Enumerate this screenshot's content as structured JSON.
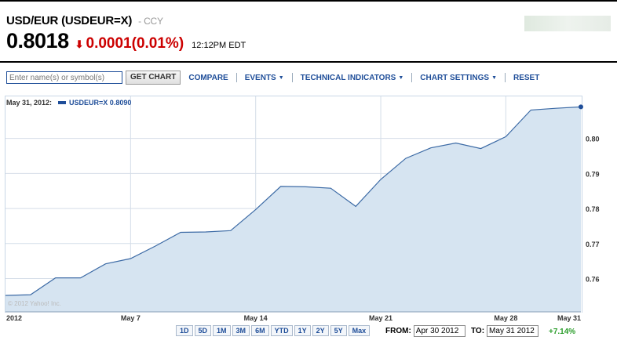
{
  "header": {
    "title": "USD/EUR (USDEUR=X)",
    "subtitle": "- CCY",
    "price": "0.8018",
    "change": "0.0001(0.01%)",
    "time": "12:12PM EDT",
    "change_color": "#cc0000",
    "down_arrow_icon": "down-arrow-icon"
  },
  "toolbar": {
    "search_placeholder": "Enter name(s) or symbol(s)",
    "get_chart": "GET CHART",
    "compare": "COMPARE",
    "events": "EVENTS",
    "technical_indicators": "TECHNICAL INDICATORS",
    "chart_settings": "CHART SETTINGS",
    "reset": "RESET"
  },
  "legend": {
    "date": "May 31, 2012:",
    "series": "USDEUR=X 0.8090"
  },
  "copyright": "© 2012 Yahoo! Inc.",
  "chart_data": {
    "type": "area",
    "title": "",
    "series": [
      {
        "name": "USDEUR=X",
        "x": [
          "Apr 30",
          "May 1",
          "May 2",
          "May 3",
          "May 4",
          "May 7",
          "May 8",
          "May 9",
          "May 10",
          "May 11",
          "May 14",
          "May 15",
          "May 16",
          "May 17",
          "May 18",
          "May 21",
          "May 22",
          "May 23",
          "May 24",
          "May 25",
          "May 28",
          "May 29",
          "May 30",
          "May 31"
        ],
        "values": [
          0.7552,
          0.7554,
          0.7602,
          0.7602,
          0.7642,
          0.7657,
          0.7693,
          0.7732,
          0.7733,
          0.7737,
          0.7797,
          0.7863,
          0.7862,
          0.7858,
          0.7806,
          0.7883,
          0.7943,
          0.7973,
          0.7987,
          0.7971,
          0.8005,
          0.8081,
          0.8086,
          0.809
        ]
      }
    ],
    "x_ticks": [
      "2012",
      "May 7",
      "May 14",
      "May 21",
      "May 28",
      "May 31"
    ],
    "y_ticks": [
      "0.76",
      "0.77",
      "0.78",
      "0.79",
      "0.80"
    ],
    "ylim": [
      0.7505,
      0.812
    ],
    "grid": true,
    "colors": {
      "line": "#3c6aa5",
      "fill": "#d6e4f1",
      "grid": "#d4dde8"
    }
  },
  "ranges": [
    "1D",
    "5D",
    "1M",
    "3M",
    "6M",
    "YTD",
    "1Y",
    "2Y",
    "5Y",
    "Max"
  ],
  "dates": {
    "from_label": "FROM:",
    "from_value": "Apr 30 2012",
    "to_label": "TO:",
    "to_value": "May 31 2012",
    "change": "+7.14%",
    "change_color": "#2a9d2a"
  }
}
